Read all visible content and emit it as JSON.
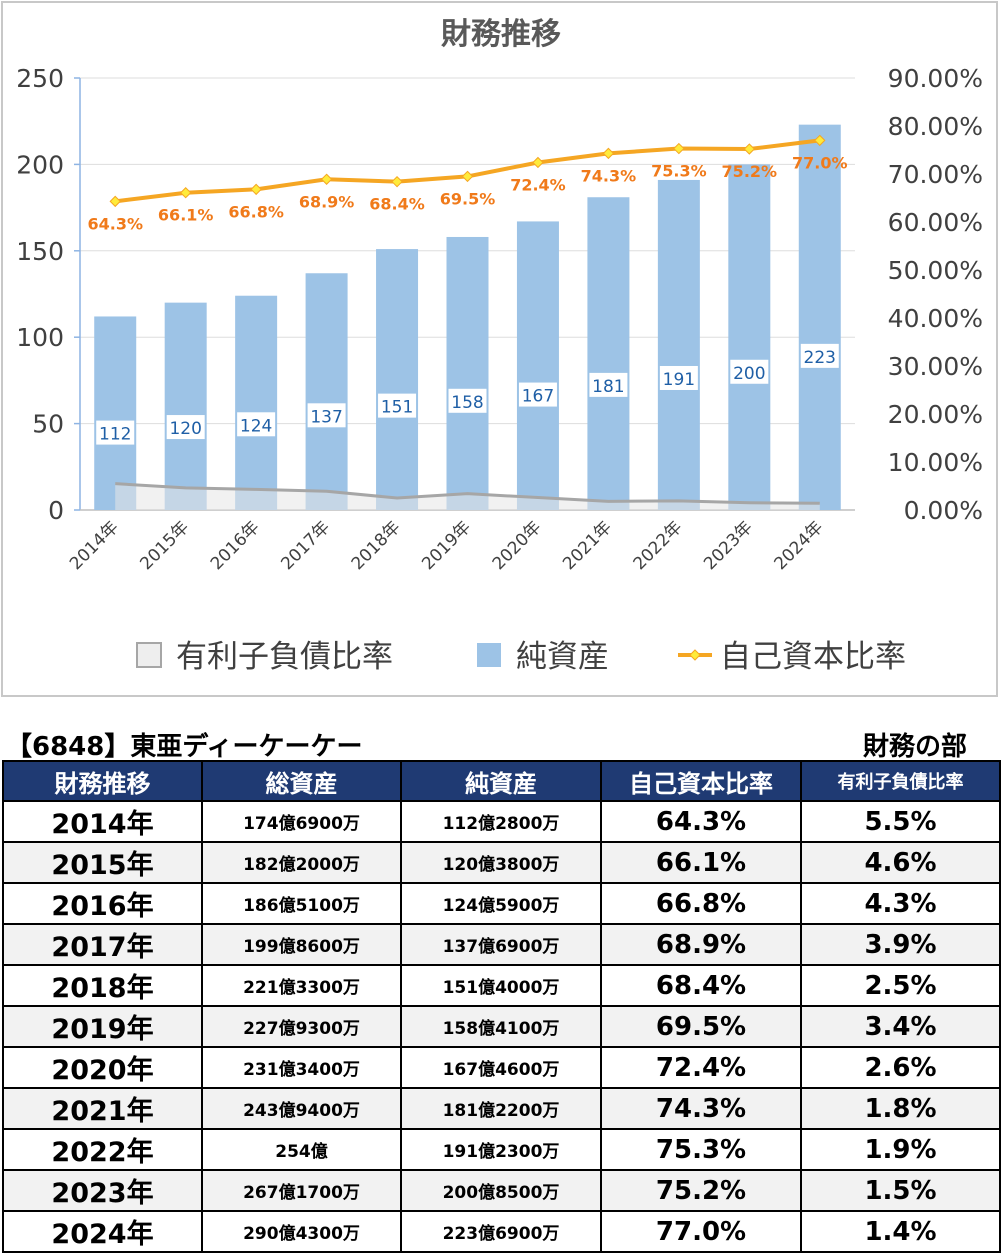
{
  "chart_data": {
    "type": "bar+line",
    "title": "財務推移",
    "categories": [
      "2014年",
      "2015年",
      "2016年",
      "2017年",
      "2018年",
      "2019年",
      "2020年",
      "2021年",
      "2022年",
      "2023年",
      "2024年"
    ],
    "left_axis": {
      "ylim": [
        0,
        250
      ],
      "ticks": [
        "0",
        "50",
        "100",
        "150",
        "200",
        "250"
      ]
    },
    "right_axis": {
      "ylim": [
        0,
        90
      ],
      "ticks": [
        "0.00%",
        "10.00%",
        "20.00%",
        "30.00%",
        "40.00%",
        "50.00%",
        "60.00%",
        "70.00%",
        "80.00%",
        "90.00%"
      ]
    },
    "grid": true,
    "legend_position": "bottom",
    "series": [
      {
        "name": "有利子負債比率",
        "type": "area",
        "axis": "right",
        "color": "#a6a6a6",
        "values": [
          5.5,
          4.6,
          4.3,
          3.9,
          2.5,
          3.4,
          2.6,
          1.8,
          1.9,
          1.5,
          1.4
        ]
      },
      {
        "name": "純資産",
        "type": "bar",
        "axis": "left",
        "color": "#9dc3e6",
        "values": [
          112,
          120,
          124,
          137,
          151,
          158,
          167,
          181,
          191,
          200,
          223
        ],
        "labels": [
          "112",
          "120",
          "124",
          "137",
          "151",
          "158",
          "167",
          "181",
          "191",
          "200",
          "223"
        ]
      },
      {
        "name": "自己資本比率",
        "type": "line",
        "axis": "right",
        "color": "#f5a623",
        "values": [
          64.3,
          66.1,
          66.8,
          68.9,
          68.4,
          69.5,
          72.4,
          74.3,
          75.3,
          75.2,
          77.0
        ],
        "labels": [
          "64.3%",
          "66.1%",
          "66.8%",
          "68.9%",
          "68.4%",
          "69.5%",
          "72.4%",
          "74.3%",
          "75.3%",
          "75.2%",
          "77.0%"
        ]
      }
    ]
  },
  "company_title": "【6848】東亜ディーケーケー",
  "section_label": "財務の部",
  "table": {
    "headers": [
      "財務推移",
      "総資産",
      "純資産",
      "自己資本比率",
      "有利子負債比率"
    ],
    "rows": [
      [
        "2014年",
        "174億6900万",
        "112億2800万",
        "64.3%",
        "5.5%"
      ],
      [
        "2015年",
        "182億2000万",
        "120億3800万",
        "66.1%",
        "4.6%"
      ],
      [
        "2016年",
        "186億5100万",
        "124億5900万",
        "66.8%",
        "4.3%"
      ],
      [
        "2017年",
        "199億8600万",
        "137億6900万",
        "68.9%",
        "3.9%"
      ],
      [
        "2018年",
        "221億3300万",
        "151億4000万",
        "68.4%",
        "2.5%"
      ],
      [
        "2019年",
        "227億9300万",
        "158億4100万",
        "69.5%",
        "3.4%"
      ],
      [
        "2020年",
        "231億3400万",
        "167億4600万",
        "72.4%",
        "2.6%"
      ],
      [
        "2021年",
        "243億9400万",
        "181億2200万",
        "74.3%",
        "1.8%"
      ],
      [
        "2022年",
        "254億",
        "191億2300万",
        "75.3%",
        "1.9%"
      ],
      [
        "2023年",
        "267億1700万",
        "200億8500万",
        "75.2%",
        "1.5%"
      ],
      [
        "2024年",
        "290億4300万",
        "223億6900万",
        "77.0%",
        "1.4%"
      ]
    ]
  }
}
